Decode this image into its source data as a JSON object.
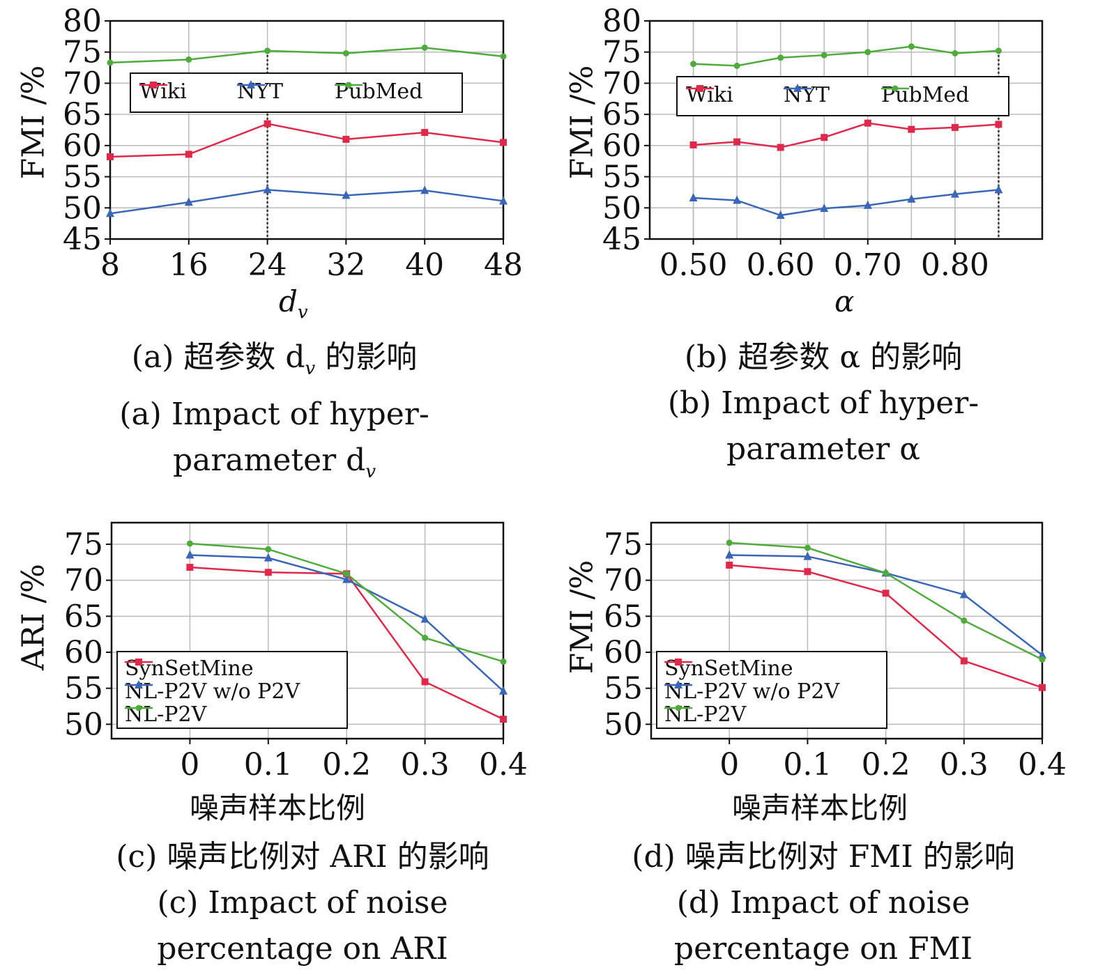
{
  "chart_data": [
    {
      "type": "line",
      "x": [
        8,
        16,
        24,
        32,
        40,
        48
      ],
      "xticks": [
        "8",
        "16",
        "24",
        "32",
        "40",
        "48"
      ],
      "xlim": [
        8,
        48
      ],
      "ylim": [
        45,
        80
      ],
      "yticks": [
        45,
        50,
        55,
        60,
        65,
        70,
        75,
        80
      ],
      "ylabel": "FMI /%",
      "xlabel": "d",
      "xlabel_sub": "v",
      "marker_line_x": 24,
      "legend_position": "upper-center",
      "legend_layout": "row",
      "series": [
        {
          "name": "Wiki",
          "color": "#e0284a",
          "marker": "square",
          "values": [
            58.2,
            58.6,
            63.5,
            61.0,
            62.1,
            60.5
          ]
        },
        {
          "name": "NYT",
          "color": "#3a66b8",
          "marker": "triangle",
          "values": [
            49.1,
            50.9,
            52.9,
            52.0,
            52.8,
            51.1
          ]
        },
        {
          "name": "PubMed",
          "color": "#4fab3c",
          "marker": "dot",
          "values": [
            73.3,
            73.8,
            75.2,
            74.8,
            75.7,
            74.3
          ]
        }
      ],
      "caption_cn": "(a) 超参数 d",
      "caption_cn_sub": "v",
      "caption_cn_tail": " 的影响",
      "caption_en_1": "(a) Impact of hyper-",
      "caption_en_2": "parameter d",
      "caption_en_2_sub": "v"
    },
    {
      "type": "line",
      "x": [
        0.5,
        0.55,
        0.6,
        0.65,
        0.7,
        0.75,
        0.8,
        0.85
      ],
      "xticks": [
        "0.50",
        "0.60",
        "0.70",
        "0.80"
      ],
      "xtick_values": [
        0.5,
        0.6,
        0.7,
        0.8
      ],
      "xlim": [
        0.45,
        0.9
      ],
      "ylim": [
        45,
        80
      ],
      "yticks": [
        45,
        50,
        55,
        60,
        65,
        70,
        75,
        80
      ],
      "ylabel": "FMI /%",
      "xlabel": "α",
      "marker_line_x": 0.85,
      "legend_position": "upper-center",
      "legend_layout": "row",
      "series": [
        {
          "name": "Wiki",
          "color": "#e0284a",
          "marker": "square",
          "values": [
            60.1,
            60.6,
            59.7,
            61.3,
            63.6,
            62.6,
            62.9,
            63.4
          ]
        },
        {
          "name": "NYT",
          "color": "#3a66b8",
          "marker": "triangle",
          "values": [
            51.6,
            51.2,
            48.8,
            49.9,
            50.4,
            51.4,
            52.2,
            52.9
          ]
        },
        {
          "name": "PubMed",
          "color": "#4fab3c",
          "marker": "dot",
          "values": [
            73.1,
            72.8,
            74.1,
            74.5,
            75.0,
            75.9,
            74.8,
            75.2
          ]
        }
      ],
      "caption_cn": "(b) 超参数 α 的影响",
      "caption_en_1": "(b) Impact of hyper-",
      "caption_en_2": "parameter α"
    },
    {
      "type": "line",
      "x": [
        0,
        0.1,
        0.2,
        0.3,
        0.4
      ],
      "xticks": [
        "0",
        "0.1",
        "0.2",
        "0.3",
        "0.4"
      ],
      "xtick_values": [
        0,
        0.1,
        0.2,
        0.3,
        0.4
      ],
      "xlim": [
        -0.1,
        0.4
      ],
      "ylim": [
        48,
        78
      ],
      "yticks": [
        50,
        55,
        60,
        65,
        70,
        75
      ],
      "ylabel": "ARI /%",
      "xlabel": "噪声样本比例",
      "legend_position": "lower-left",
      "legend_layout": "column",
      "series": [
        {
          "name": "SynSetMine",
          "color": "#e0284a",
          "marker": "square",
          "values": [
            71.8,
            71.1,
            70.9,
            55.9,
            50.7
          ]
        },
        {
          "name": "NL-P2V w/o P2V",
          "color": "#3a66b8",
          "marker": "triangle",
          "values": [
            73.5,
            73.1,
            70.1,
            64.6,
            54.6
          ]
        },
        {
          "name": "NL-P2V",
          "color": "#4fab3c",
          "marker": "dot",
          "values": [
            75.1,
            74.3,
            70.9,
            62.0,
            58.7
          ]
        }
      ],
      "caption_cn": "(c) 噪声比例对 ARI 的影响",
      "caption_en_1": "(c) Impact of noise",
      "caption_en_2": "percentage on ARI"
    },
    {
      "type": "line",
      "x": [
        0,
        0.1,
        0.2,
        0.3,
        0.4
      ],
      "xticks": [
        "0",
        "0.1",
        "0.2",
        "0.3",
        "0.4"
      ],
      "xtick_values": [
        0,
        0.1,
        0.2,
        0.3,
        0.4
      ],
      "xlim": [
        -0.1,
        0.4
      ],
      "ylim": [
        48,
        78
      ],
      "yticks": [
        50,
        55,
        60,
        65,
        70,
        75
      ],
      "ylabel": "FMI /%",
      "xlabel": "噪声样本比例",
      "legend_position": "lower-left",
      "legend_layout": "column",
      "series": [
        {
          "name": "SynSetMine",
          "color": "#e0284a",
          "marker": "square",
          "values": [
            72.1,
            71.2,
            68.2,
            58.8,
            55.1
          ]
        },
        {
          "name": "NL-P2V w/o P2V",
          "color": "#3a66b8",
          "marker": "triangle",
          "values": [
            73.5,
            73.3,
            71.0,
            68.0,
            59.6
          ]
        },
        {
          "name": "NL-P2V",
          "color": "#4fab3c",
          "marker": "dot",
          "values": [
            75.2,
            74.5,
            71.0,
            64.4,
            59.0
          ]
        }
      ],
      "caption_cn": "(d) 噪声比例对 FMI 的影响",
      "caption_en_1": "(d) Impact of noise",
      "caption_en_2": "percentage on FMI"
    }
  ]
}
